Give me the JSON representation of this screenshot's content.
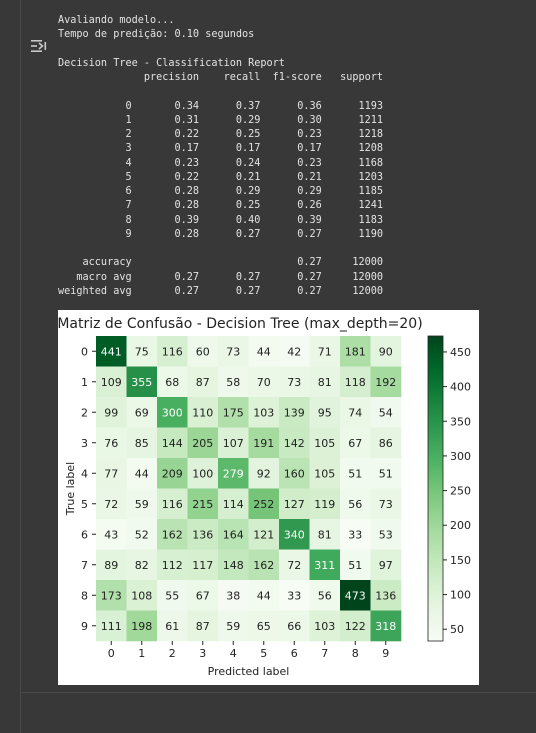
{
  "console": {
    "lines": [
      "Avaliando modelo...",
      "Tempo de predição: 0.10 segundos",
      "",
      "Decision Tree - Classification Report",
      "              precision    recall  f1-score   support",
      "",
      "           0       0.34      0.37      0.36      1193",
      "           1       0.31      0.29      0.30      1211",
      "           2       0.22      0.25      0.23      1218",
      "           3       0.17      0.17      0.17      1208",
      "           4       0.23      0.24      0.23      1168",
      "           5       0.22      0.21      0.21      1203",
      "           6       0.28      0.29      0.29      1185",
      "           7       0.28      0.25      0.26      1241",
      "           8       0.39      0.40      0.39      1183",
      "           9       0.28      0.27      0.27      1190",
      "",
      "    accuracy                           0.27     12000",
      "   macro avg       0.27      0.27      0.27     12000",
      "weighted avg       0.27      0.27      0.27     12000"
    ]
  },
  "output_icon": "output-toggle-icon",
  "chart_data": {
    "type": "heatmap",
    "title": "Matriz de Confusão - Decision Tree (max_depth=20)",
    "xlabel": "Predicted label",
    "ylabel": "True label",
    "x_categories": [
      "0",
      "1",
      "2",
      "3",
      "4",
      "5",
      "6",
      "7",
      "8",
      "9"
    ],
    "y_categories": [
      "0",
      "1",
      "2",
      "3",
      "4",
      "5",
      "6",
      "7",
      "8",
      "9"
    ],
    "matrix": [
      [
        441,
        75,
        116,
        60,
        73,
        44,
        42,
        71,
        181,
        90
      ],
      [
        109,
        355,
        68,
        87,
        58,
        70,
        73,
        81,
        118,
        192
      ],
      [
        99,
        69,
        300,
        110,
        175,
        103,
        139,
        95,
        74,
        54
      ],
      [
        76,
        85,
        144,
        205,
        107,
        191,
        142,
        105,
        67,
        86
      ],
      [
        77,
        44,
        209,
        100,
        279,
        92,
        160,
        105,
        51,
        51
      ],
      [
        72,
        59,
        116,
        215,
        114,
        252,
        127,
        119,
        56,
        73
      ],
      [
        43,
        52,
        162,
        136,
        164,
        121,
        340,
        81,
        33,
        53
      ],
      [
        89,
        82,
        112,
        117,
        148,
        162,
        72,
        311,
        51,
        97
      ],
      [
        173,
        108,
        55,
        67,
        38,
        44,
        33,
        56,
        473,
        136
      ],
      [
        111,
        198,
        61,
        87,
        59,
        65,
        66,
        103,
        122,
        318
      ]
    ],
    "colormap": "Greens",
    "colorbar": {
      "range": [
        33,
        473
      ],
      "ticks": [
        50,
        100,
        150,
        200,
        250,
        300,
        350,
        400,
        450
      ]
    },
    "colors": {
      "low": "#f7fcf5",
      "high": "#00441b"
    }
  }
}
